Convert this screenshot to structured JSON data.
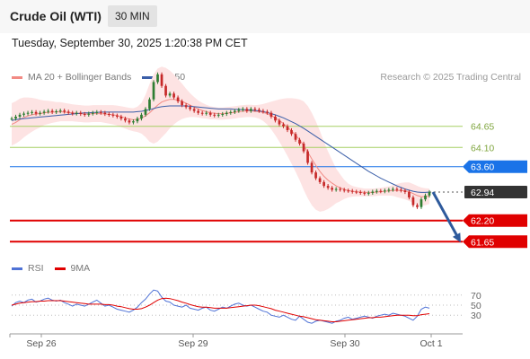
{
  "header": {
    "title": "Crude Oil (WTI)",
    "interval": "30 MIN",
    "timestamp": "Tuesday, September 30, 2025 1:20:38 PM CET"
  },
  "legend": {
    "items": [
      {
        "label": "MA 20 + Bollinger Bands",
        "color": "#f28a84"
      },
      {
        "label": "MA 50",
        "color": "#3a5ea8"
      }
    ],
    "credit": "Research © 2025 Trading Central"
  },
  "rsi_legend": {
    "items": [
      {
        "label": "RSI",
        "color": "#4f72d6"
      },
      {
        "label": "9MA",
        "color": "#e00000"
      }
    ]
  },
  "colors": {
    "support": "#e00000",
    "pivot": "#1a73e8",
    "resistance": "#a6cf63",
    "last": "#333333",
    "arrow": "#2e5a9c"
  },
  "chart_data": [
    {
      "type": "candlestick",
      "ylim": [
        61.4,
        65.6
      ],
      "x_ticks": [
        "Sep 26",
        "Sep 29",
        "Sep 30",
        "Oct 1"
      ],
      "levels": [
        {
          "value": 64.65,
          "label": "64.65",
          "kind": "resistance"
        },
        {
          "value": 64.1,
          "label": "64.10",
          "kind": "resistance"
        },
        {
          "value": 63.6,
          "label": "63.60",
          "kind": "pivot"
        },
        {
          "value": 62.94,
          "label": "62.94",
          "kind": "last"
        },
        {
          "value": 62.2,
          "label": "62.20",
          "kind": "support"
        },
        {
          "value": 61.65,
          "label": "61.65",
          "kind": "support"
        }
      ],
      "close": [
        64.85,
        64.9,
        64.95,
        64.98,
        65.0,
        65.02,
        64.98,
        65.0,
        65.03,
        65.05,
        65.02,
        65.04,
        65.06,
        65.03,
        65.0,
        64.98,
        65.0,
        64.97,
        64.95,
        64.98,
        65.0,
        65.02,
        65.0,
        64.97,
        64.95,
        64.93,
        64.9,
        64.85,
        64.8,
        64.75,
        64.78,
        64.85,
        64.95,
        65.1,
        65.35,
        65.8,
        66.0,
        65.7,
        65.45,
        65.5,
        65.4,
        65.3,
        65.2,
        65.15,
        65.1,
        65.05,
        65.0,
        64.98,
        65.0,
        64.95,
        64.93,
        64.95,
        64.97,
        65.0,
        65.02,
        65.05,
        65.08,
        65.1,
        65.05,
        65.1,
        65.08,
        65.05,
        65.03,
        65.0,
        64.9,
        64.8,
        64.7,
        64.65,
        64.55,
        64.45,
        64.3,
        64.2,
        64.0,
        63.7,
        63.45,
        63.3,
        63.2,
        63.1,
        63.05,
        63.0,
        63.02,
        63.0,
        62.98,
        62.97,
        62.95,
        62.94,
        62.92,
        62.9,
        62.92,
        62.95,
        62.97,
        62.96,
        62.98,
        63.0,
        63.02,
        63.0,
        62.98,
        62.94,
        62.8,
        62.6,
        62.55,
        62.75,
        62.85,
        62.94
      ],
      "ma20": [
        64.7,
        64.75,
        64.82,
        64.88,
        64.92,
        64.95,
        64.97,
        64.98,
        65.0,
        65.01,
        65.02,
        65.02,
        65.03,
        65.02,
        65.01,
        65.0,
        64.99,
        64.98,
        64.97,
        64.97,
        64.98,
        64.98,
        64.98,
        64.97,
        64.96,
        64.95,
        64.93,
        64.9,
        64.87,
        64.84,
        64.82,
        64.83,
        64.86,
        64.92,
        65.0,
        65.1,
        65.2,
        65.28,
        65.32,
        65.35,
        65.35,
        65.33,
        65.3,
        65.25,
        65.2,
        65.15,
        65.1,
        65.06,
        65.03,
        65.0,
        64.99,
        64.98,
        64.98,
        64.99,
        65.0,
        65.01,
        65.03,
        65.04,
        65.05,
        65.05,
        65.04,
        65.03,
        65.01,
        64.98,
        64.93,
        64.87,
        64.8,
        64.72,
        64.63,
        64.53,
        64.42,
        64.3,
        64.15,
        63.98,
        63.8,
        63.63,
        63.48,
        63.35,
        63.25,
        63.17,
        63.1,
        63.05,
        63.01,
        62.98,
        62.96,
        62.95,
        62.94,
        62.93,
        62.93,
        62.93,
        62.94,
        62.95,
        62.96,
        62.97,
        62.98,
        62.98,
        62.98,
        62.97,
        62.95,
        62.9,
        62.85,
        62.82,
        62.82,
        62.83
      ],
      "ma50": [
        64.8,
        64.82,
        64.84,
        64.85,
        64.86,
        64.87,
        64.88,
        64.89,
        64.9,
        64.91,
        64.92,
        64.93,
        64.94,
        64.95,
        64.96,
        64.97,
        64.98,
        64.99,
        65.0,
        65.0,
        65.01,
        65.01,
        65.02,
        65.02,
        65.02,
        65.02,
        65.02,
        65.02,
        65.02,
        65.02,
        65.02,
        65.03,
        65.04,
        65.06,
        65.08,
        65.11,
        65.14,
        65.16,
        65.17,
        65.18,
        65.18,
        65.18,
        65.18,
        65.18,
        65.17,
        65.16,
        65.15,
        65.14,
        65.13,
        65.12,
        65.11,
        65.1,
        65.1,
        65.1,
        65.1,
        65.09,
        65.09,
        65.08,
        65.08,
        65.07,
        65.06,
        65.05,
        65.03,
        65.01,
        64.98,
        64.95,
        64.91,
        64.87,
        64.82,
        64.77,
        64.72,
        64.66,
        64.6,
        64.53,
        64.46,
        64.39,
        64.32,
        64.25,
        64.18,
        64.11,
        64.04,
        63.97,
        63.9,
        63.83,
        63.76,
        63.69,
        63.62,
        63.55,
        63.48,
        63.42,
        63.36,
        63.3,
        63.25,
        63.2,
        63.15,
        63.1,
        63.06,
        63.02,
        62.99,
        62.96,
        62.94,
        62.93,
        62.93,
        62.94
      ],
      "bb_width": [
        0.55,
        0.55,
        0.55,
        0.52,
        0.48,
        0.44,
        0.4,
        0.36,
        0.32,
        0.3,
        0.28,
        0.26,
        0.25,
        0.24,
        0.23,
        0.22,
        0.22,
        0.22,
        0.22,
        0.22,
        0.22,
        0.22,
        0.22,
        0.23,
        0.24,
        0.25,
        0.26,
        0.27,
        0.28,
        0.29,
        0.3,
        0.33,
        0.4,
        0.55,
        0.75,
        0.9,
        0.95,
        0.92,
        0.85,
        0.75,
        0.65,
        0.55,
        0.46,
        0.38,
        0.31,
        0.26,
        0.22,
        0.2,
        0.18,
        0.17,
        0.16,
        0.16,
        0.16,
        0.16,
        0.16,
        0.16,
        0.16,
        0.16,
        0.16,
        0.16,
        0.16,
        0.18,
        0.22,
        0.28,
        0.36,
        0.45,
        0.55,
        0.65,
        0.75,
        0.85,
        0.95,
        1.05,
        1.15,
        1.2,
        1.2,
        1.15,
        1.05,
        0.9,
        0.75,
        0.6,
        0.45,
        0.35,
        0.25,
        0.18,
        0.14,
        0.12,
        0.11,
        0.1,
        0.1,
        0.1,
        0.1,
        0.1,
        0.11,
        0.12,
        0.14,
        0.17,
        0.2,
        0.22,
        0.24,
        0.25,
        0.25,
        0.24,
        0.22,
        0.2
      ]
    },
    {
      "type": "line",
      "name": "RSI",
      "ylim": [
        0,
        100
      ],
      "y_ticks": [
        70,
        50,
        30
      ],
      "rsi": [
        48,
        55,
        58,
        55,
        60,
        62,
        56,
        58,
        62,
        64,
        60,
        58,
        60,
        55,
        52,
        48,
        52,
        50,
        48,
        52,
        56,
        60,
        54,
        48,
        50,
        46,
        42,
        40,
        38,
        36,
        40,
        46,
        55,
        62,
        72,
        80,
        78,
        66,
        58,
        56,
        50,
        48,
        46,
        50,
        44,
        42,
        40,
        44,
        46,
        40,
        38,
        42,
        46,
        44,
        48,
        52,
        54,
        50,
        48,
        50,
        46,
        42,
        38,
        36,
        30,
        28,
        26,
        30,
        26,
        22,
        20,
        28,
        22,
        16,
        14,
        18,
        20,
        18,
        16,
        14,
        18,
        20,
        24,
        26,
        22,
        24,
        26,
        28,
        26,
        24,
        28,
        30,
        32,
        30,
        34,
        32,
        30,
        28,
        24,
        20,
        28,
        42,
        46,
        44
      ],
      "ma9": [
        50,
        52,
        54,
        55,
        56,
        57,
        57,
        58,
        58,
        59,
        59,
        59,
        59,
        58,
        57,
        56,
        55,
        54,
        53,
        52,
        52,
        52,
        52,
        51,
        51,
        50,
        48,
        47,
        45,
        43,
        42,
        42,
        43,
        46,
        50,
        55,
        60,
        63,
        64,
        63,
        61,
        59,
        56,
        54,
        51,
        49,
        47,
        46,
        46,
        45,
        44,
        44,
        44,
        44,
        45,
        46,
        47,
        48,
        49,
        50,
        50,
        49,
        47,
        45,
        43,
        40,
        38,
        36,
        34,
        32,
        30,
        28,
        27,
        25,
        23,
        21,
        20,
        19,
        18,
        17,
        17,
        18,
        19,
        20,
        21,
        22,
        23,
        24,
        25,
        25,
        26,
        26,
        27,
        28,
        29,
        30,
        30,
        30,
        30,
        29,
        29,
        31,
        32,
        33
      ]
    }
  ]
}
